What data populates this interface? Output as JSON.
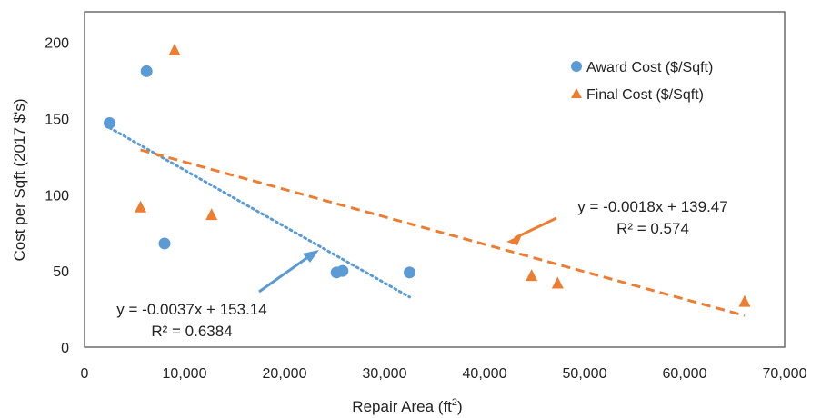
{
  "chart_data": {
    "type": "scatter",
    "xlabel": "Repair Area (ft",
    "xlabel_sup": "2",
    "xlabel_close": ")",
    "ylabel": "Cost per Sqft (2017 $'s)",
    "xlim": [
      0,
      70000
    ],
    "ylim": [
      0,
      220
    ],
    "x_ticks": [
      0,
      10000,
      20000,
      30000,
      40000,
      50000,
      60000,
      70000
    ],
    "x_tick_labels": [
      "0",
      "10,000",
      "20,000",
      "30,000",
      "40,000",
      "50,000",
      "60,000",
      "70,000"
    ],
    "y_ticks": [
      0,
      50,
      100,
      150,
      200
    ],
    "y_tick_labels": [
      "0",
      "50",
      "100",
      "150",
      "200"
    ],
    "grid": false,
    "legend_position": "top-right",
    "series": [
      {
        "name": "Award Cost ($/Sqft)",
        "marker": "circle",
        "color": "#5b9bd5",
        "points": [
          {
            "x": 2500,
            "y": 147
          },
          {
            "x": 6200,
            "y": 181
          },
          {
            "x": 8000,
            "y": 68
          },
          {
            "x": 25200,
            "y": 49
          },
          {
            "x": 25800,
            "y": 50
          },
          {
            "x": 32500,
            "y": 49
          }
        ],
        "trendline": {
          "style": "dotted",
          "x_range": [
            2500,
            32500
          ],
          "equation": "y = -0.0037x + 153.14",
          "r2": "R² = 0.6384"
        }
      },
      {
        "name": "Final Cost ($/Sqft)",
        "marker": "triangle",
        "color": "#ed7d31",
        "points": [
          {
            "x": 5600,
            "y": 92
          },
          {
            "x": 9000,
            "y": 195
          },
          {
            "x": 12700,
            "y": 87
          },
          {
            "x": 44700,
            "y": 47
          },
          {
            "x": 47300,
            "y": 42
          },
          {
            "x": 66000,
            "y": 30
          }
        ],
        "trendline": {
          "style": "dashed",
          "x_range": [
            5600,
            66000
          ],
          "equation": "y = -0.0018x + 139.47",
          "r2": "R² = 0.574"
        }
      }
    ]
  }
}
